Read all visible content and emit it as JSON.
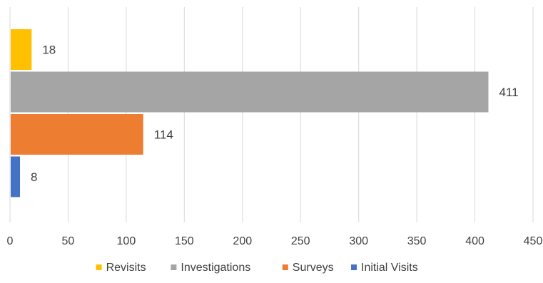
{
  "chart_data": {
    "type": "bar",
    "orientation": "horizontal",
    "series": [
      {
        "name": "Revisits",
        "value": 18,
        "color": "#FFC000"
      },
      {
        "name": "Investigations",
        "value": 411,
        "color": "#A5A5A5"
      },
      {
        "name": "Surveys",
        "value": 114,
        "color": "#ED7D31"
      },
      {
        "name": "Initial Visits",
        "value": 8,
        "color": "#4472C4"
      }
    ],
    "x_ticks": [
      "0",
      "50",
      "100",
      "150",
      "200",
      "250",
      "300",
      "350",
      "400",
      "450"
    ],
    "xlim": [
      0,
      450
    ],
    "title": "",
    "xlabel": "",
    "ylabel": "",
    "grid": "vertical",
    "legend_position": "bottom",
    "data_labels": true
  }
}
